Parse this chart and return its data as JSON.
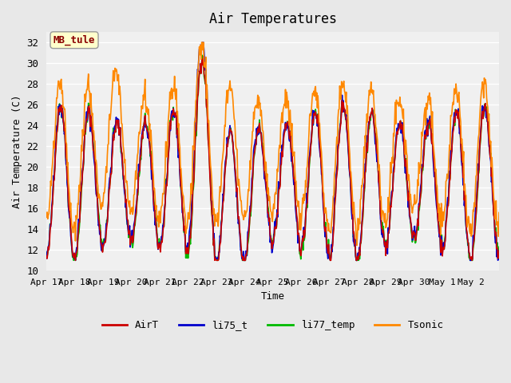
{
  "title": "Air Temperatures",
  "xlabel": "Time",
  "ylabel": "Air Temperature (C)",
  "ylim": [
    10,
    33
  ],
  "yticks": [
    10,
    12,
    14,
    16,
    18,
    20,
    22,
    24,
    26,
    28,
    30,
    32
  ],
  "annotation_text": "MB_tule",
  "annotation_color": "#8B0000",
  "annotation_bg": "#FFFFCC",
  "annotation_border": "#999999",
  "series_colors": {
    "AirT": "#CC0000",
    "li75_t": "#0000CC",
    "li77_temp": "#00BB00",
    "Tsonic": "#FF8800"
  },
  "series_lw": 1.2,
  "bg_color": "#E8E8E8",
  "plot_bg": "#F0F0F0",
  "grid_color": "#FFFFFF",
  "xtick_labels": [
    "Apr 17",
    "Apr 18",
    "Apr 19",
    "Apr 20",
    "Apr 21",
    "Apr 22",
    "Apr 23",
    "Apr 24",
    "Apr 25",
    "Apr 26",
    "Apr 27",
    "Apr 28",
    "Apr 29",
    "Apr 30",
    "May 1",
    "May 2"
  ],
  "n_days": 16,
  "pts_per_day": 48
}
